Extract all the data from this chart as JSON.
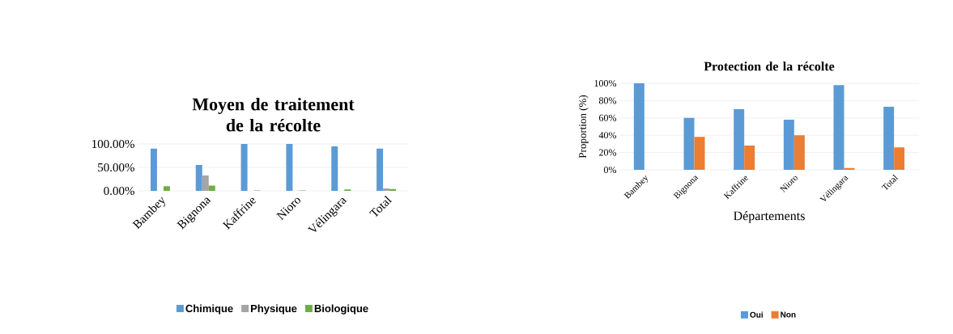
{
  "chart_data": [
    {
      "type": "bar",
      "title": "Moyen de traitement de la récolte",
      "categories": [
        "Bambey",
        "Bignona",
        "Kaffrine",
        "Nioro",
        "Vélingara",
        "Total"
      ],
      "series": [
        {
          "name": "Chimique",
          "color": "#5b9bd5",
          "values": [
            90,
            55,
            100,
            100,
            95,
            90
          ]
        },
        {
          "name": "Physique",
          "color": "#a5a5a5",
          "values": [
            0,
            33,
            0,
            0,
            0,
            5
          ]
        },
        {
          "name": "Biologique",
          "color": "#70ad47",
          "values": [
            10,
            11,
            1,
            1,
            3,
            4
          ]
        }
      ],
      "ylim": [
        0,
        100
      ],
      "yticks": [
        {
          "value": 0,
          "label": "0.00%"
        },
        {
          "value": 50,
          "label": "50.00%"
        },
        {
          "value": 100,
          "label": "100.00%"
        }
      ],
      "grid": "y",
      "legend": "bottom"
    },
    {
      "type": "bar",
      "title": "Protection de la récolte",
      "xlabel": "Départements",
      "ylabel": "Proportion (%)",
      "categories": [
        "Bambey",
        "Bignona",
        "Kaffrine",
        "Nioro",
        "Vélingara",
        "Total"
      ],
      "series": [
        {
          "name": "Oui",
          "color": "#5b9bd5",
          "values": [
            100,
            60,
            70,
            58,
            98,
            73
          ]
        },
        {
          "name": "Non",
          "color": "#ed7d31",
          "values": [
            0,
            38,
            28,
            40,
            2,
            26
          ]
        }
      ],
      "ylim": [
        0,
        100
      ],
      "yticks": [
        {
          "value": 0,
          "label": "0%"
        },
        {
          "value": 20,
          "label": "20%"
        },
        {
          "value": 40,
          "label": "40%"
        },
        {
          "value": 60,
          "label": "60%"
        },
        {
          "value": 80,
          "label": "80%"
        },
        {
          "value": 100,
          "label": "100%"
        }
      ],
      "grid": "y",
      "legend": "bottom"
    }
  ]
}
